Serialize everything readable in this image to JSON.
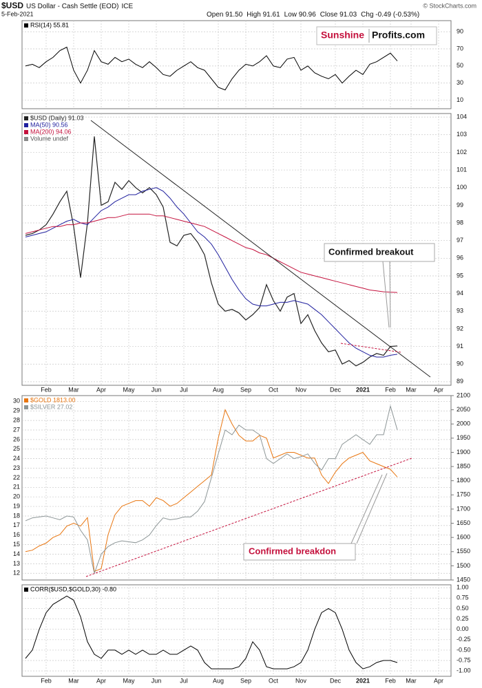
{
  "header": {
    "symbol": "$USD",
    "name": "US Dollar - Cash Settle (EOD)",
    "exchange": "ICE",
    "date": "5-Feb-2021",
    "quote": [
      "Open 91.50",
      "High 91.61",
      "Low 90.96",
      "Close 91.03",
      "Chg -0.49 (-0.53%)"
    ],
    "credit": "© StockCharts.com",
    "logo": [
      "Sunshine",
      "Profits.com"
    ]
  },
  "chart_data": [
    {
      "type": "line",
      "ylim": [
        0,
        103
      ],
      "yticks": [
        10,
        30,
        50,
        70,
        90
      ],
      "grid": true,
      "series": [
        {
          "name": "RSI(14) 55.81",
          "color": "#000000",
          "values": [
            50,
            52,
            48,
            55,
            60,
            68,
            72,
            45,
            30,
            45,
            68,
            55,
            52,
            60,
            55,
            58,
            52,
            48,
            55,
            48,
            40,
            38,
            45,
            50,
            55,
            48,
            45,
            35,
            25,
            22,
            35,
            45,
            52,
            50,
            55,
            62,
            50,
            48,
            58,
            60,
            45,
            50,
            42,
            38,
            35,
            40,
            30,
            38,
            45,
            40,
            52,
            55,
            60,
            65,
            55.81,
            null,
            null,
            null,
            null,
            null,
            null,
            null
          ]
        }
      ]
    },
    {
      "type": "line",
      "ylim": [
        88.8,
        104.2
      ],
      "yticks": [
        89,
        90,
        91,
        92,
        93,
        94,
        95,
        96,
        97,
        98,
        99,
        100,
        101,
        102,
        103,
        104
      ],
      "grid": true,
      "categories": [
        null,
        null,
        null,
        "Feb",
        null,
        null,
        null,
        "Mar",
        null,
        null,
        null,
        "Apr",
        null,
        null,
        null,
        "May",
        null,
        null,
        null,
        "Jun",
        null,
        null,
        null,
        "Jul",
        null,
        null,
        null,
        null,
        "Aug",
        null,
        null,
        null,
        "Sep",
        null,
        null,
        null,
        "Oct",
        null,
        null,
        null,
        "Nov",
        null,
        null,
        null,
        null,
        "Dec",
        null,
        null,
        null,
        "2021",
        null,
        null,
        null,
        "Feb",
        null,
        null,
        "Mar",
        null,
        null,
        null,
        "Apr",
        null
      ],
      "legend_note": "Volume undef",
      "annotations": [
        "Confirmed breakout"
      ],
      "series": [
        {
          "name": "$USD (Daily) 91.03",
          "color": "#222222",
          "values": [
            97.3,
            97.4,
            97.6,
            97.9,
            98.5,
            99.2,
            99.8,
            97.8,
            94.9,
            98.0,
            102.9,
            99.0,
            99.2,
            100.3,
            99.9,
            100.4,
            100.0,
            99.7,
            100.0,
            99.6,
            98.9,
            96.9,
            96.7,
            97.3,
            97.4,
            96.9,
            96.2,
            94.6,
            93.4,
            93.0,
            93.1,
            92.9,
            92.5,
            92.8,
            93.2,
            94.5,
            93.6,
            93.0,
            93.8,
            94.0,
            92.3,
            92.8,
            91.9,
            91.2,
            90.7,
            90.8,
            90.0,
            90.2,
            89.9,
            90.1,
            90.4,
            90.6,
            90.5,
            91.0,
            91.03,
            null,
            null,
            null,
            null,
            null,
            null,
            null
          ]
        },
        {
          "name": "MA(50) 90.56",
          "color": "#1f1f9e",
          "values": [
            97.2,
            97.3,
            97.4,
            97.5,
            97.7,
            97.9,
            98.1,
            98.2,
            98.0,
            97.9,
            98.3,
            98.7,
            98.9,
            99.2,
            99.4,
            99.6,
            99.6,
            99.8,
            99.9,
            100.0,
            99.8,
            99.4,
            98.9,
            98.5,
            98.0,
            97.5,
            97.2,
            96.8,
            96.2,
            95.5,
            94.8,
            94.2,
            93.7,
            93.4,
            93.3,
            93.3,
            93.4,
            93.5,
            93.5,
            93.6,
            93.5,
            93.4,
            93.1,
            92.8,
            92.4,
            92.0,
            91.6,
            91.2,
            90.9,
            90.7,
            90.5,
            90.4,
            90.4,
            90.5,
            90.56,
            null,
            null,
            null,
            null,
            null,
            null,
            null
          ]
        },
        {
          "name": "MA(200) 94.06",
          "color": "#c4103c",
          "values": [
            97.4,
            97.5,
            97.6,
            97.7,
            97.8,
            97.8,
            97.9,
            97.9,
            98.0,
            98.0,
            98.1,
            98.2,
            98.3,
            98.3,
            98.4,
            98.5,
            98.5,
            98.5,
            98.5,
            98.4,
            98.4,
            98.3,
            98.2,
            98.1,
            98.0,
            97.9,
            97.8,
            97.6,
            97.4,
            97.2,
            97.0,
            96.8,
            96.6,
            96.5,
            96.3,
            96.2,
            96.0,
            95.8,
            95.6,
            95.4,
            95.2,
            95.1,
            95.0,
            94.9,
            94.8,
            94.7,
            94.6,
            94.5,
            94.4,
            94.3,
            94.2,
            94.15,
            94.1,
            94.08,
            94.06,
            null,
            null,
            null,
            null,
            null,
            null,
            null
          ]
        }
      ]
    },
    {
      "type": "line",
      "ylim": [
        11.3,
        30.6
      ],
      "yticks": [
        12,
        13,
        14,
        15,
        16,
        17,
        18,
        19,
        20,
        21,
        22,
        23,
        24,
        25,
        26,
        27,
        28,
        29,
        30
      ],
      "y2lim": [
        1450,
        2100
      ],
      "y2ticks": [
        1450,
        1500,
        1550,
        1600,
        1650,
        1700,
        1750,
        1800,
        1850,
        1900,
        1950,
        2000,
        2050,
        2100
      ],
      "grid": true,
      "annotations": [
        "Confirmed breakdon"
      ],
      "series": [
        {
          "name": "$GOLD 1813.00",
          "color": "#e8750f",
          "axis": "y2",
          "values": [
            1550,
            1555,
            1570,
            1580,
            1600,
            1610,
            1640,
            1650,
            1640,
            1670,
            1480,
            1490,
            1610,
            1680,
            1710,
            1720,
            1730,
            1730,
            1710,
            1740,
            1730,
            1710,
            1720,
            1740,
            1760,
            1780,
            1800,
            1820,
            1950,
            2050,
            2000,
            1960,
            1940,
            1940,
            1960,
            1950,
            1880,
            1890,
            1900,
            1900,
            1890,
            1880,
            1880,
            1820,
            1790,
            1830,
            1860,
            1880,
            1890,
            1900,
            1870,
            1860,
            1850,
            1840,
            1813,
            null,
            null,
            null,
            null,
            null,
            null,
            null
          ]
        },
        {
          "name": "$SILVER 27.02",
          "color": "#8c9596",
          "values": [
            17.5,
            17.8,
            17.9,
            18.0,
            17.8,
            17.6,
            18.0,
            17.9,
            16.5,
            15.5,
            12.0,
            14.0,
            14.8,
            15.2,
            15.4,
            15.3,
            15.2,
            15.5,
            16.0,
            17.0,
            17.8,
            17.6,
            17.7,
            17.9,
            17.9,
            18.5,
            19.5,
            22.0,
            24.5,
            27.0,
            26.5,
            27.5,
            27.0,
            27.0,
            26.5,
            24.0,
            23.5,
            24.0,
            24.5,
            24.0,
            24.2,
            24.5,
            23.5,
            22.8,
            24.0,
            24.0,
            25.5,
            26.0,
            26.5,
            26.0,
            25.5,
            26.5,
            26.5,
            29.5,
            27.02,
            null,
            null,
            null,
            null,
            null,
            null,
            null
          ]
        }
      ]
    },
    {
      "type": "line",
      "ylim": [
        -1.13,
        1.07
      ],
      "yticks": [
        {
          "value": 1,
          "label": "1.00"
        },
        {
          "value": 0.75,
          "label": "0.75"
        },
        {
          "value": 0.5,
          "label": "0.50"
        },
        {
          "value": 0.25,
          "label": "0.25"
        },
        {
          "value": 0,
          "label": "0.00"
        },
        {
          "value": -0.25,
          "label": "-0.25"
        },
        {
          "value": -0.5,
          "label": "-0.50"
        },
        {
          "value": -0.75,
          "label": "-0.75"
        },
        {
          "value": -1,
          "label": "-1.00"
        }
      ],
      "grid": true,
      "categories": [
        null,
        null,
        null,
        "Feb",
        null,
        null,
        null,
        "Mar",
        null,
        null,
        null,
        "Apr",
        null,
        null,
        null,
        "May",
        null,
        null,
        null,
        "Jun",
        null,
        null,
        null,
        "Jul",
        null,
        null,
        null,
        null,
        "Aug",
        null,
        null,
        null,
        "Sep",
        null,
        null,
        null,
        "Oct",
        null,
        null,
        null,
        "Nov",
        null,
        null,
        null,
        null,
        "Dec",
        null,
        null,
        null,
        "2021",
        null,
        null,
        null,
        "Feb",
        null,
        null,
        "Mar",
        null,
        null,
        null,
        "Apr",
        null
      ],
      "series": [
        {
          "name": "CORR($USD,$GOLD,30) -0.80",
          "color": "#000000",
          "values": [
            -0.7,
            -0.5,
            0.0,
            0.4,
            0.6,
            0.7,
            0.8,
            0.7,
            0.3,
            -0.3,
            -0.6,
            -0.7,
            -0.5,
            -0.5,
            -0.6,
            -0.5,
            -0.6,
            -0.5,
            -0.6,
            -0.6,
            -0.5,
            -0.6,
            -0.6,
            -0.5,
            -0.4,
            -0.5,
            -0.8,
            -0.95,
            -0.95,
            -0.95,
            -0.95,
            -0.9,
            -0.7,
            -0.3,
            -0.5,
            -0.9,
            -0.95,
            -0.95,
            -0.95,
            -0.9,
            -0.8,
            -0.5,
            0.0,
            0.4,
            0.5,
            0.4,
            0.0,
            -0.5,
            -0.8,
            -0.95,
            -0.9,
            -0.8,
            -0.75,
            -0.75,
            -0.8,
            null,
            null,
            null,
            null,
            null,
            null,
            null
          ]
        }
      ]
    }
  ]
}
